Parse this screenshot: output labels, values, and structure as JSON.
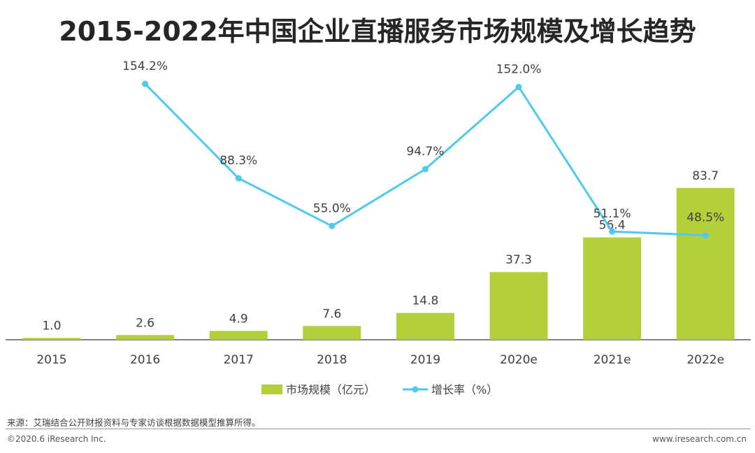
{
  "chart_data": {
    "type": "bar",
    "title": "2015-2022年中国企业直播服务市场规模及增长趋势",
    "categories": [
      "2015",
      "2016",
      "2017",
      "2018",
      "2019",
      "2020e",
      "2021e",
      "2022e"
    ],
    "series": [
      {
        "name": "市场规模（亿元）",
        "type": "bar",
        "values": [
          1.0,
          2.6,
          4.9,
          7.6,
          14.8,
          37.3,
          56.4,
          83.7
        ],
        "labels": [
          "1.0",
          "2.6",
          "4.9",
          "7.6",
          "14.8",
          "37.3",
          "56.4",
          "83.7"
        ],
        "color": "#b3cf3a"
      },
      {
        "name": "增长率（%）",
        "type": "line",
        "values": [
          null,
          154.2,
          88.3,
          55.0,
          94.7,
          152.0,
          51.1,
          48.5
        ],
        "labels": [
          null,
          "154.2%",
          "88.3%",
          "55.0%",
          "94.7%",
          "152.0%",
          "51.1%",
          "48.5%"
        ],
        "color": "#4fc9ef"
      }
    ],
    "ylim_bar": [
      0,
      84
    ],
    "ylim_line": [
      0,
      155
    ],
    "legend_position": "bottom-center",
    "grid": false
  },
  "footer": {
    "source": "来源：艾瑞结合公开财报资料与专家访谈根据数据模型推算所得。",
    "copyright": "©2020.6 iResearch Inc.",
    "website": "www.iresearch.com.cn"
  }
}
